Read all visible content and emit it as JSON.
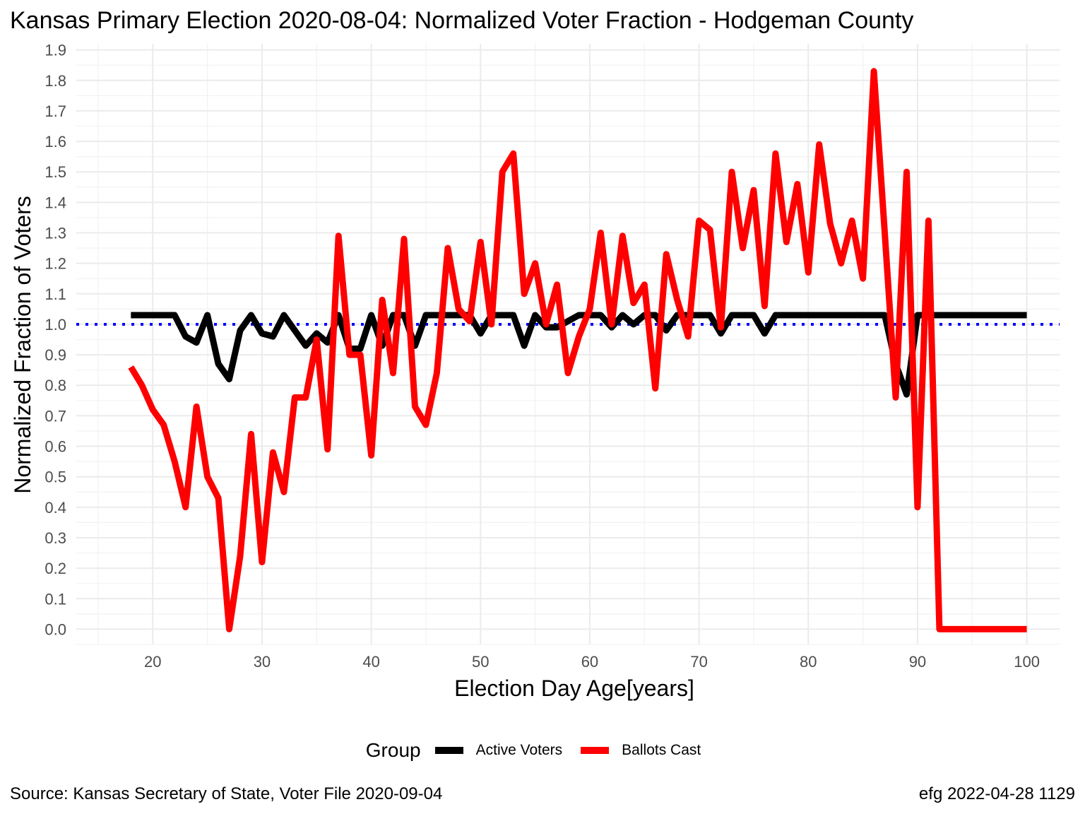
{
  "chart_data": {
    "type": "line",
    "title": "Kansas Primary Election 2020-08-04:  Normalized Voter Fraction - Hodgeman County",
    "xlabel": "Election Day Age[years]",
    "ylabel": "Normalized Fraction of Voters",
    "xlim": [
      13,
      103
    ],
    "ylim": [
      -0.05,
      1.92
    ],
    "x_ticks": [
      20,
      30,
      40,
      50,
      60,
      70,
      80,
      90,
      100
    ],
    "x_tick_labels": [
      "20",
      "30",
      "40",
      "50",
      "60",
      "70",
      "80",
      "90",
      "100"
    ],
    "y_ticks": [
      0.0,
      0.1,
      0.2,
      0.3,
      0.4,
      0.5,
      0.6,
      0.7,
      0.8,
      0.9,
      1.0,
      1.1,
      1.2,
      1.3,
      1.4,
      1.5,
      1.6,
      1.7,
      1.8,
      1.9
    ],
    "y_tick_labels": [
      "0.0",
      "0.1",
      "0.2",
      "0.3",
      "0.4",
      "0.5",
      "0.6",
      "0.7",
      "0.8",
      "0.9",
      "1.0",
      "1.1",
      "1.2",
      "1.3",
      "1.4",
      "1.5",
      "1.6",
      "1.7",
      "1.8",
      "1.9"
    ],
    "grid": true,
    "reference_line": {
      "y": 1.0,
      "style": "dotted",
      "color": "#0000ff"
    },
    "legend": {
      "title": "Group",
      "position": "bottom"
    },
    "series": [
      {
        "name": "Active Voters",
        "color": "#000000",
        "x": [
          18,
          19,
          20,
          21,
          22,
          23,
          24,
          25,
          26,
          27,
          28,
          29,
          30,
          31,
          32,
          33,
          34,
          35,
          36,
          37,
          38,
          39,
          40,
          41,
          42,
          43,
          44,
          45,
          46,
          47,
          48,
          49,
          50,
          51,
          52,
          53,
          54,
          55,
          56,
          57,
          58,
          59,
          60,
          61,
          62,
          63,
          64,
          65,
          66,
          67,
          68,
          69,
          70,
          71,
          72,
          73,
          74,
          75,
          76,
          77,
          78,
          79,
          80,
          81,
          82,
          83,
          84,
          85,
          86,
          87,
          88,
          89,
          90,
          91,
          92,
          93,
          94,
          95,
          96,
          97,
          98,
          99,
          100
        ],
        "y": [
          1.03,
          1.03,
          1.03,
          1.03,
          1.03,
          0.96,
          0.94,
          1.03,
          0.87,
          0.82,
          0.98,
          1.03,
          0.97,
          0.96,
          1.03,
          0.98,
          0.93,
          0.97,
          0.94,
          1.03,
          0.92,
          0.92,
          1.03,
          0.93,
          1.03,
          1.03,
          0.93,
          1.03,
          1.03,
          1.03,
          1.03,
          1.03,
          0.97,
          1.03,
          1.03,
          1.03,
          0.93,
          1.03,
          0.99,
          0.99,
          1.01,
          1.03,
          1.03,
          1.03,
          0.99,
          1.03,
          1.0,
          1.03,
          1.03,
          0.98,
          1.03,
          1.03,
          1.03,
          1.03,
          0.97,
          1.03,
          1.03,
          1.03,
          0.97,
          1.03,
          1.03,
          1.03,
          1.03,
          1.03,
          1.03,
          1.03,
          1.03,
          1.03,
          1.03,
          1.03,
          0.87,
          0.77,
          1.03,
          1.03,
          1.03,
          1.03,
          1.03,
          1.03,
          1.03,
          1.03,
          1.03,
          1.03,
          1.03
        ]
      },
      {
        "name": "Ballots Cast",
        "color": "#ff0000",
        "x": [
          18,
          19,
          20,
          21,
          22,
          23,
          24,
          25,
          26,
          27,
          28,
          29,
          30,
          31,
          32,
          33,
          34,
          35,
          36,
          37,
          38,
          39,
          40,
          41,
          42,
          43,
          44,
          45,
          46,
          47,
          48,
          49,
          50,
          51,
          52,
          53,
          54,
          55,
          56,
          57,
          58,
          59,
          60,
          61,
          62,
          63,
          64,
          65,
          66,
          67,
          68,
          69,
          70,
          71,
          72,
          73,
          74,
          75,
          76,
          77,
          78,
          79,
          80,
          81,
          82,
          83,
          84,
          85,
          86,
          87,
          88,
          89,
          90,
          91,
          92,
          93,
          94,
          95,
          96,
          97,
          98,
          99,
          100
        ],
        "y": [
          0.86,
          0.8,
          0.72,
          0.67,
          0.55,
          0.4,
          0.73,
          0.5,
          0.43,
          0.0,
          0.24,
          0.64,
          0.22,
          0.58,
          0.45,
          0.76,
          0.76,
          0.95,
          0.59,
          1.29,
          0.9,
          0.9,
          0.57,
          1.08,
          0.84,
          1.28,
          0.73,
          0.67,
          0.84,
          1.25,
          1.05,
          1.01,
          1.27,
          1.0,
          1.5,
          1.56,
          1.1,
          1.2,
          1.0,
          1.13,
          0.84,
          0.96,
          1.05,
          1.3,
          1.0,
          1.29,
          1.07,
          1.13,
          0.79,
          1.23,
          1.08,
          0.96,
          1.34,
          1.31,
          0.99,
          1.5,
          1.25,
          1.44,
          1.06,
          1.56,
          1.27,
          1.46,
          1.17,
          1.59,
          1.33,
          1.2,
          1.34,
          1.15,
          1.83,
          1.3,
          0.76,
          1.5,
          0.4,
          1.34,
          0.0,
          0.0,
          0.0,
          0.0,
          0.0,
          0.0,
          0.0,
          0.0,
          0.0
        ]
      }
    ]
  },
  "caption_left": "Source:  Kansas Secretary of State, Voter File  2020-09-04",
  "caption_right": "efg 2022-04-28 1129"
}
